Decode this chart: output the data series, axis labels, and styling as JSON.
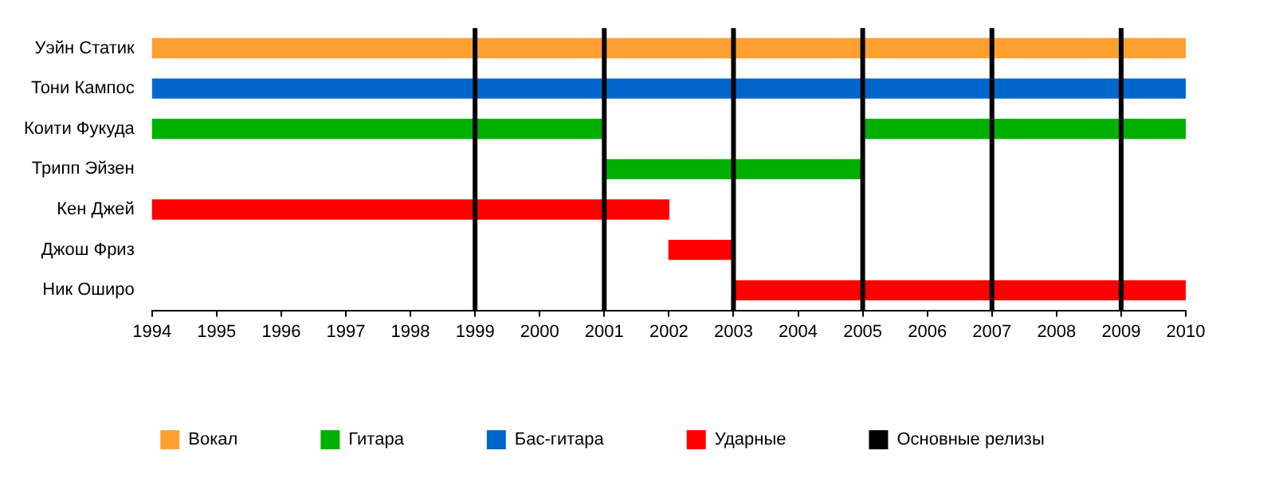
{
  "chart_data": {
    "type": "bar",
    "orientation": "horizontal",
    "categories": [
      "Уэйн Статик",
      "Тони Кампос",
      "Коити Фукуда",
      "Трипп Эйзен",
      "Кен Джей",
      "Джош Фриз",
      "Ник Оширо"
    ],
    "series": [
      {
        "name": "Вокал",
        "color": "#ffa030",
        "values": [
          16,
          null,
          null,
          null,
          null,
          null,
          null
        ],
        "base": [
          1994,
          null,
          null,
          null,
          null,
          null,
          null
        ]
      },
      {
        "name": "Гитара",
        "color": "#00b000",
        "values": [
          null,
          null,
          7,
          4,
          null,
          null,
          null
        ],
        "base": [
          null,
          null,
          1994,
          2001,
          null,
          null,
          null
        ]
      },
      {
        "color": "#00b000",
        "values": [
          null,
          null,
          5,
          null,
          null,
          null,
          null
        ],
        "base": [
          null,
          null,
          2005,
          null,
          null,
          null,
          null
        ]
      },
      {
        "name": "Бас-гитара",
        "color": "#0066cc",
        "values": [
          null,
          16,
          null,
          null,
          null,
          null,
          null
        ],
        "base": [
          null,
          1994,
          null,
          null,
          null,
          null,
          null
        ]
      },
      {
        "name": "Ударные",
        "color": "#ff0000",
        "values": [
          null,
          null,
          null,
          null,
          8,
          1,
          7
        ],
        "base": [
          null,
          null,
          null,
          null,
          1994,
          2002,
          2003
        ]
      }
    ],
    "xlim": [
      1994,
      2010
    ],
    "xticks": [
      1994,
      1995,
      1996,
      1997,
      1998,
      1999,
      2000,
      2001,
      2002,
      2003,
      2004,
      2005,
      2006,
      2007,
      2008,
      2009,
      2010
    ],
    "ref_lines": [
      {
        "axis": "x",
        "value": 1999,
        "label": "Основные релизы",
        "color": "#000000"
      },
      {
        "axis": "x",
        "value": 2001,
        "color": "#000000"
      },
      {
        "axis": "x",
        "value": 2003,
        "color": "#000000"
      },
      {
        "axis": "x",
        "value": 2005,
        "color": "#000000"
      },
      {
        "axis": "x",
        "value": 2007,
        "color": "#000000"
      },
      {
        "axis": "x",
        "value": 2009,
        "color": "#000000"
      }
    ],
    "grid": false,
    "legend": "bottom"
  }
}
